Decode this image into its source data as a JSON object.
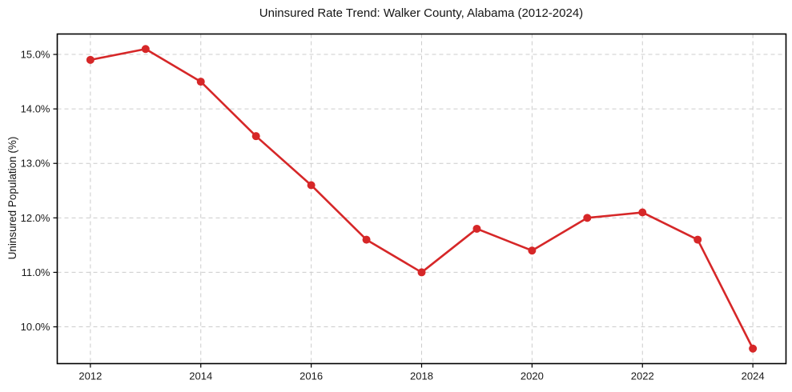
{
  "chart_data": {
    "type": "line",
    "title": "Uninsured Rate Trend: Walker County, Alabama (2012-2024)",
    "xlabel": "",
    "ylabel": "Uninsured Population (%)",
    "x": [
      2012,
      2013,
      2014,
      2015,
      2016,
      2017,
      2018,
      2019,
      2020,
      2021,
      2022,
      2023,
      2024
    ],
    "values": [
      14.9,
      15.1,
      14.5,
      13.5,
      12.6,
      11.6,
      11.0,
      11.8,
      11.4,
      12.0,
      12.1,
      11.6,
      9.6
    ],
    "series_name": "Uninsured rate",
    "x_tick_values": [
      2012,
      2014,
      2016,
      2018,
      2020,
      2022,
      2024
    ],
    "x_tick_labels": [
      "2012",
      "2014",
      "2016",
      "2018",
      "2020",
      "2022",
      "2024"
    ],
    "y_tick_values": [
      10.0,
      11.0,
      12.0,
      13.0,
      14.0,
      15.0
    ],
    "y_tick_labels": [
      "10.0%",
      "11.0%",
      "12.0%",
      "13.0%",
      "14.0%",
      "15.0%"
    ],
    "xlim": [
      2011.4,
      2024.6
    ],
    "ylim": [
      9.325,
      15.375
    ],
    "grid": true,
    "legend_position": "none",
    "line_color": "#d62728",
    "marker_color": "#d62728",
    "grid_color": "#cccccc",
    "frame_color": "#000000",
    "background_color": "#ffffff"
  }
}
